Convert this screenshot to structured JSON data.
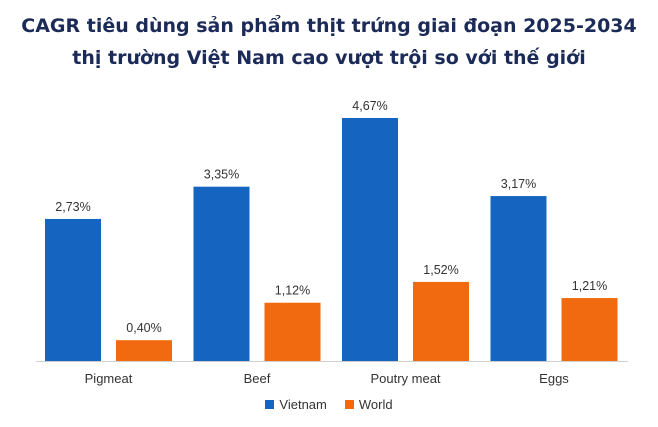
{
  "header": {
    "title_line1": "CAGR tiêu dùng sản phẩm thịt trứng giai đoạn 2025-2034",
    "title_line2": "thị trường Việt Nam cao vượt trội so với thế giới"
  },
  "colors": {
    "vietnam": "#1565c0",
    "world": "#f26a10",
    "baseline": "#cfcfcf",
    "title": "#1b2a57"
  },
  "chart_data": {
    "type": "bar",
    "title": "CAGR tiêu dùng sản phẩm thịt trứng giai đoạn 2025-2034 thị trường Việt Nam cao vượt trội so với thế giới",
    "categories": [
      "Pigmeat",
      "Beef",
      "Poutry meat",
      "Eggs"
    ],
    "series": [
      {
        "name": "Vietnam",
        "values": [
          2.73,
          3.35,
          4.67,
          3.17
        ],
        "labels": [
          "2,73%",
          "3,35%",
          "4,67%",
          "3,17%"
        ],
        "color": "#1565c0"
      },
      {
        "name": "World",
        "values": [
          0.4,
          1.12,
          1.52,
          1.21
        ],
        "labels": [
          "0,40%",
          "1,12%",
          "1,52%",
          "1,21%"
        ],
        "color": "#f26a10"
      }
    ],
    "xlabel": "",
    "ylabel": "",
    "ylim": [
      0,
      4.67
    ],
    "grid": false,
    "legend": "bottom-center"
  }
}
